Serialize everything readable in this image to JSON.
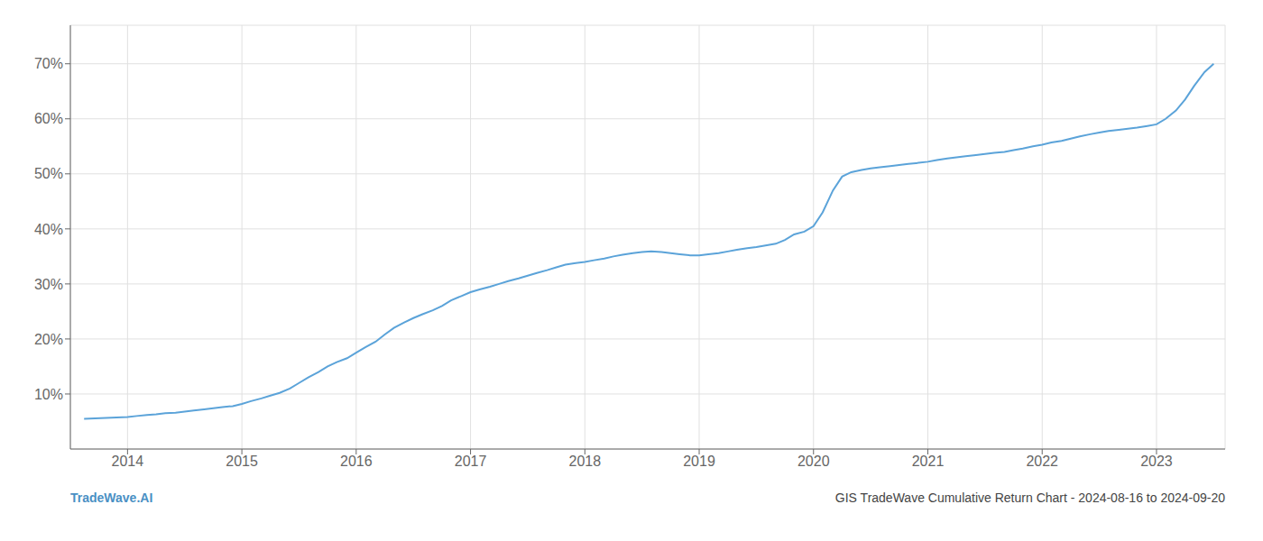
{
  "chart_data": {
    "type": "line",
    "x": [
      2013.62,
      2014.0,
      2014.08,
      2014.17,
      2014.25,
      2014.33,
      2014.42,
      2014.5,
      2014.58,
      2014.67,
      2014.75,
      2014.83,
      2014.92,
      2015.0,
      2015.08,
      2015.17,
      2015.25,
      2015.33,
      2015.42,
      2015.5,
      2015.58,
      2015.67,
      2015.75,
      2015.83,
      2015.92,
      2016.0,
      2016.08,
      2016.17,
      2016.25,
      2016.33,
      2016.42,
      2016.5,
      2016.58,
      2016.67,
      2016.75,
      2016.83,
      2016.92,
      2017.0,
      2017.08,
      2017.17,
      2017.25,
      2017.33,
      2017.42,
      2017.5,
      2017.58,
      2017.67,
      2017.75,
      2017.83,
      2017.92,
      2018.0,
      2018.08,
      2018.17,
      2018.25,
      2018.33,
      2018.42,
      2018.5,
      2018.58,
      2018.67,
      2018.75,
      2018.83,
      2018.92,
      2019.0,
      2019.08,
      2019.17,
      2019.25,
      2019.33,
      2019.42,
      2019.5,
      2019.58,
      2019.67,
      2019.75,
      2019.83,
      2019.92,
      2020.0,
      2020.08,
      2020.17,
      2020.25,
      2020.33,
      2020.42,
      2020.5,
      2020.58,
      2020.67,
      2020.75,
      2020.83,
      2020.92,
      2021.0,
      2021.08,
      2021.17,
      2021.25,
      2021.33,
      2021.42,
      2021.5,
      2021.58,
      2021.67,
      2021.75,
      2021.83,
      2021.92,
      2022.0,
      2022.08,
      2022.17,
      2022.25,
      2022.33,
      2022.42,
      2022.5,
      2022.58,
      2022.67,
      2022.75,
      2022.83,
      2022.92,
      2023.0,
      2023.08,
      2023.17,
      2023.25,
      2023.33,
      2023.42,
      2023.5
    ],
    "values": [
      5.5,
      5.8,
      6.0,
      6.2,
      6.3,
      6.5,
      6.6,
      6.8,
      7.0,
      7.2,
      7.4,
      7.6,
      7.8,
      8.2,
      8.7,
      9.2,
      9.7,
      10.2,
      11.0,
      12.0,
      13.0,
      14.0,
      15.0,
      15.8,
      16.5,
      17.5,
      18.5,
      19.5,
      20.8,
      22.0,
      23.0,
      23.8,
      24.5,
      25.2,
      26.0,
      27.0,
      27.8,
      28.5,
      29.0,
      29.5,
      30.0,
      30.5,
      31.0,
      31.5,
      32.0,
      32.5,
      33.0,
      33.5,
      33.8,
      34.0,
      34.3,
      34.6,
      35.0,
      35.3,
      35.6,
      35.8,
      35.9,
      35.8,
      35.6,
      35.4,
      35.2,
      35.2,
      35.4,
      35.6,
      35.9,
      36.2,
      36.5,
      36.7,
      37.0,
      37.3,
      38.0,
      39.0,
      39.5,
      40.5,
      43.0,
      47.0,
      49.5,
      50.3,
      50.7,
      51.0,
      51.2,
      51.4,
      51.6,
      51.8,
      52.0,
      52.2,
      52.5,
      52.8,
      53.0,
      53.2,
      53.4,
      53.6,
      53.8,
      54.0,
      54.3,
      54.6,
      55.0,
      55.3,
      55.7,
      56.0,
      56.4,
      56.8,
      57.2,
      57.5,
      57.8,
      58.0,
      58.2,
      58.4,
      58.7,
      59.0,
      60.0,
      61.5,
      63.5,
      66.0,
      68.5,
      70.0
    ],
    "color": "#5ba3d9",
    "xlim": [
      2013.5,
      2023.6
    ],
    "ylim": [
      0,
      77
    ],
    "xticks": [
      2014,
      2015,
      2016,
      2017,
      2018,
      2019,
      2020,
      2021,
      2022,
      2023
    ],
    "yticks": [
      {
        "value": 10,
        "label": "10%"
      },
      {
        "value": 20,
        "label": "20%"
      },
      {
        "value": 30,
        "label": "30%"
      },
      {
        "value": 40,
        "label": "40%"
      },
      {
        "value": 50,
        "label": "50%"
      },
      {
        "value": 60,
        "label": "60%"
      },
      {
        "value": 70,
        "label": "70%"
      }
    ],
    "grid": true,
    "annotations": [
      {
        "text": "TradeWave.AI",
        "color": "#4a90c4"
      },
      {
        "text": "GIS TradeWave Cumulative Return Chart - 2024-08-16 to 2024-09-20",
        "color": "#444444"
      }
    ]
  }
}
